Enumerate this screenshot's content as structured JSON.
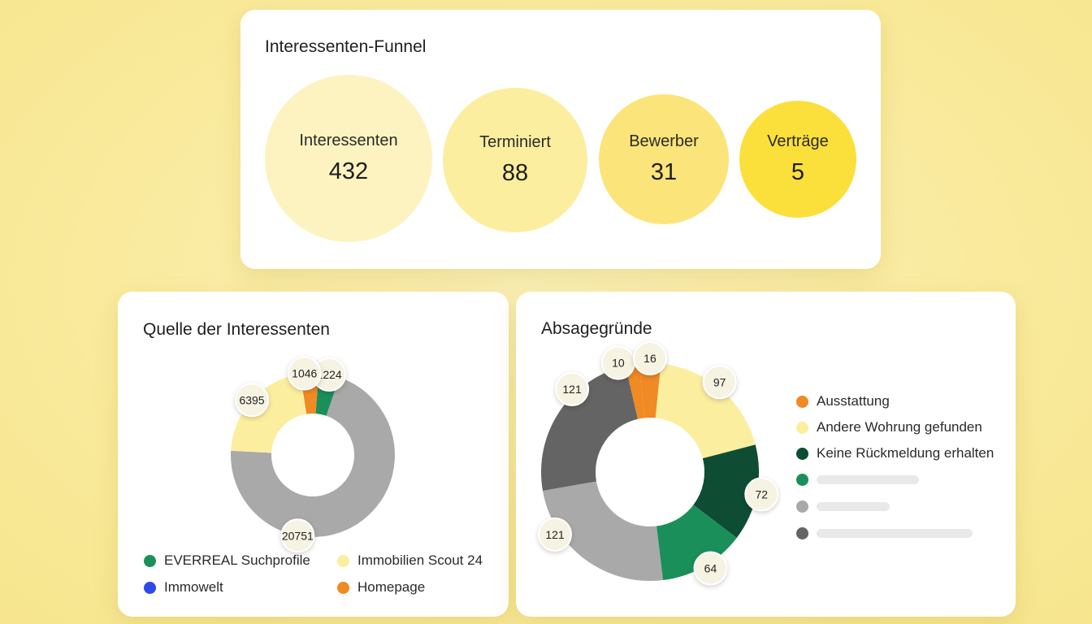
{
  "funnel": {
    "title": "Interessenten-Funnel",
    "stages": [
      {
        "label": "Interessenten",
        "value": "432",
        "color": "#fdf3c0"
      },
      {
        "label": "Terminiert",
        "value": "88",
        "color": "#fcee9f"
      },
      {
        "label": "Bewerber",
        "value": "31",
        "color": "#fbe47a"
      },
      {
        "label": "Verträge",
        "value": "5",
        "color": "#fbe03c"
      }
    ]
  },
  "chart_data": [
    {
      "type": "pie",
      "title": "Quelle der Interessenten",
      "labels": [
        "EVERREAL Suchprofile",
        "Immobilien Scout 24",
        "Immowelt",
        "Homepage"
      ],
      "slices": [
        {
          "name": "EVERREAL Suchprofile",
          "value": 1224,
          "label": "1224",
          "color": "#1b8f5a"
        },
        {
          "name": "",
          "value": 20751,
          "label": "20751",
          "color": "#a9a9a9"
        },
        {
          "name": "Immobilien Scout 24",
          "value": 6395,
          "label": "6395",
          "color": "#fcee9f"
        },
        {
          "name": "Homepage",
          "value": 1046,
          "label": "1046",
          "color": "#f08a24"
        }
      ],
      "legend": [
        {
          "label": "EVERREAL Suchprofile",
          "color": "#1b8f5a"
        },
        {
          "label": "Immobilien Scout 24",
          "color": "#fcee9f"
        },
        {
          "label": "Immowelt",
          "color": "#2f48e8"
        },
        {
          "label": "Homepage",
          "color": "#f08a24"
        }
      ],
      "legend_position": "bottom"
    },
    {
      "type": "pie",
      "title": "Absagegründe",
      "slices": [
        {
          "name": "Andere Wohrung gefunden",
          "value": 97,
          "label": "97",
          "color": "#fcee9f"
        },
        {
          "name": "Keine Rückmeldung erhalten",
          "value": 72,
          "label": "72",
          "color": "#0e4d33"
        },
        {
          "name": "",
          "value": 64,
          "label": "64",
          "color": "#1b8f5a"
        },
        {
          "name": "",
          "value": 121,
          "label": "121",
          "color": "#a9a9a9"
        },
        {
          "name": "",
          "value": 121,
          "label": "121",
          "color": "#646464"
        },
        {
          "name": "Ausstattung",
          "value": 10,
          "label": "10",
          "color": "#f08a24"
        },
        {
          "name": "",
          "value": 16,
          "label": "16",
          "color": "#f08a24"
        }
      ],
      "legend": [
        {
          "label": "Ausstattung",
          "color": "#f08a24"
        },
        {
          "label": "Andere Wohrung gefunden",
          "color": "#fcee9f"
        },
        {
          "label": "Keine Rückmeldung erhalten",
          "color": "#0e4d33"
        },
        {
          "label": "",
          "color": "#1b8f5a"
        },
        {
          "label": "",
          "color": "#a9a9a9"
        },
        {
          "label": "",
          "color": "#646464"
        }
      ],
      "legend_position": "right"
    }
  ]
}
